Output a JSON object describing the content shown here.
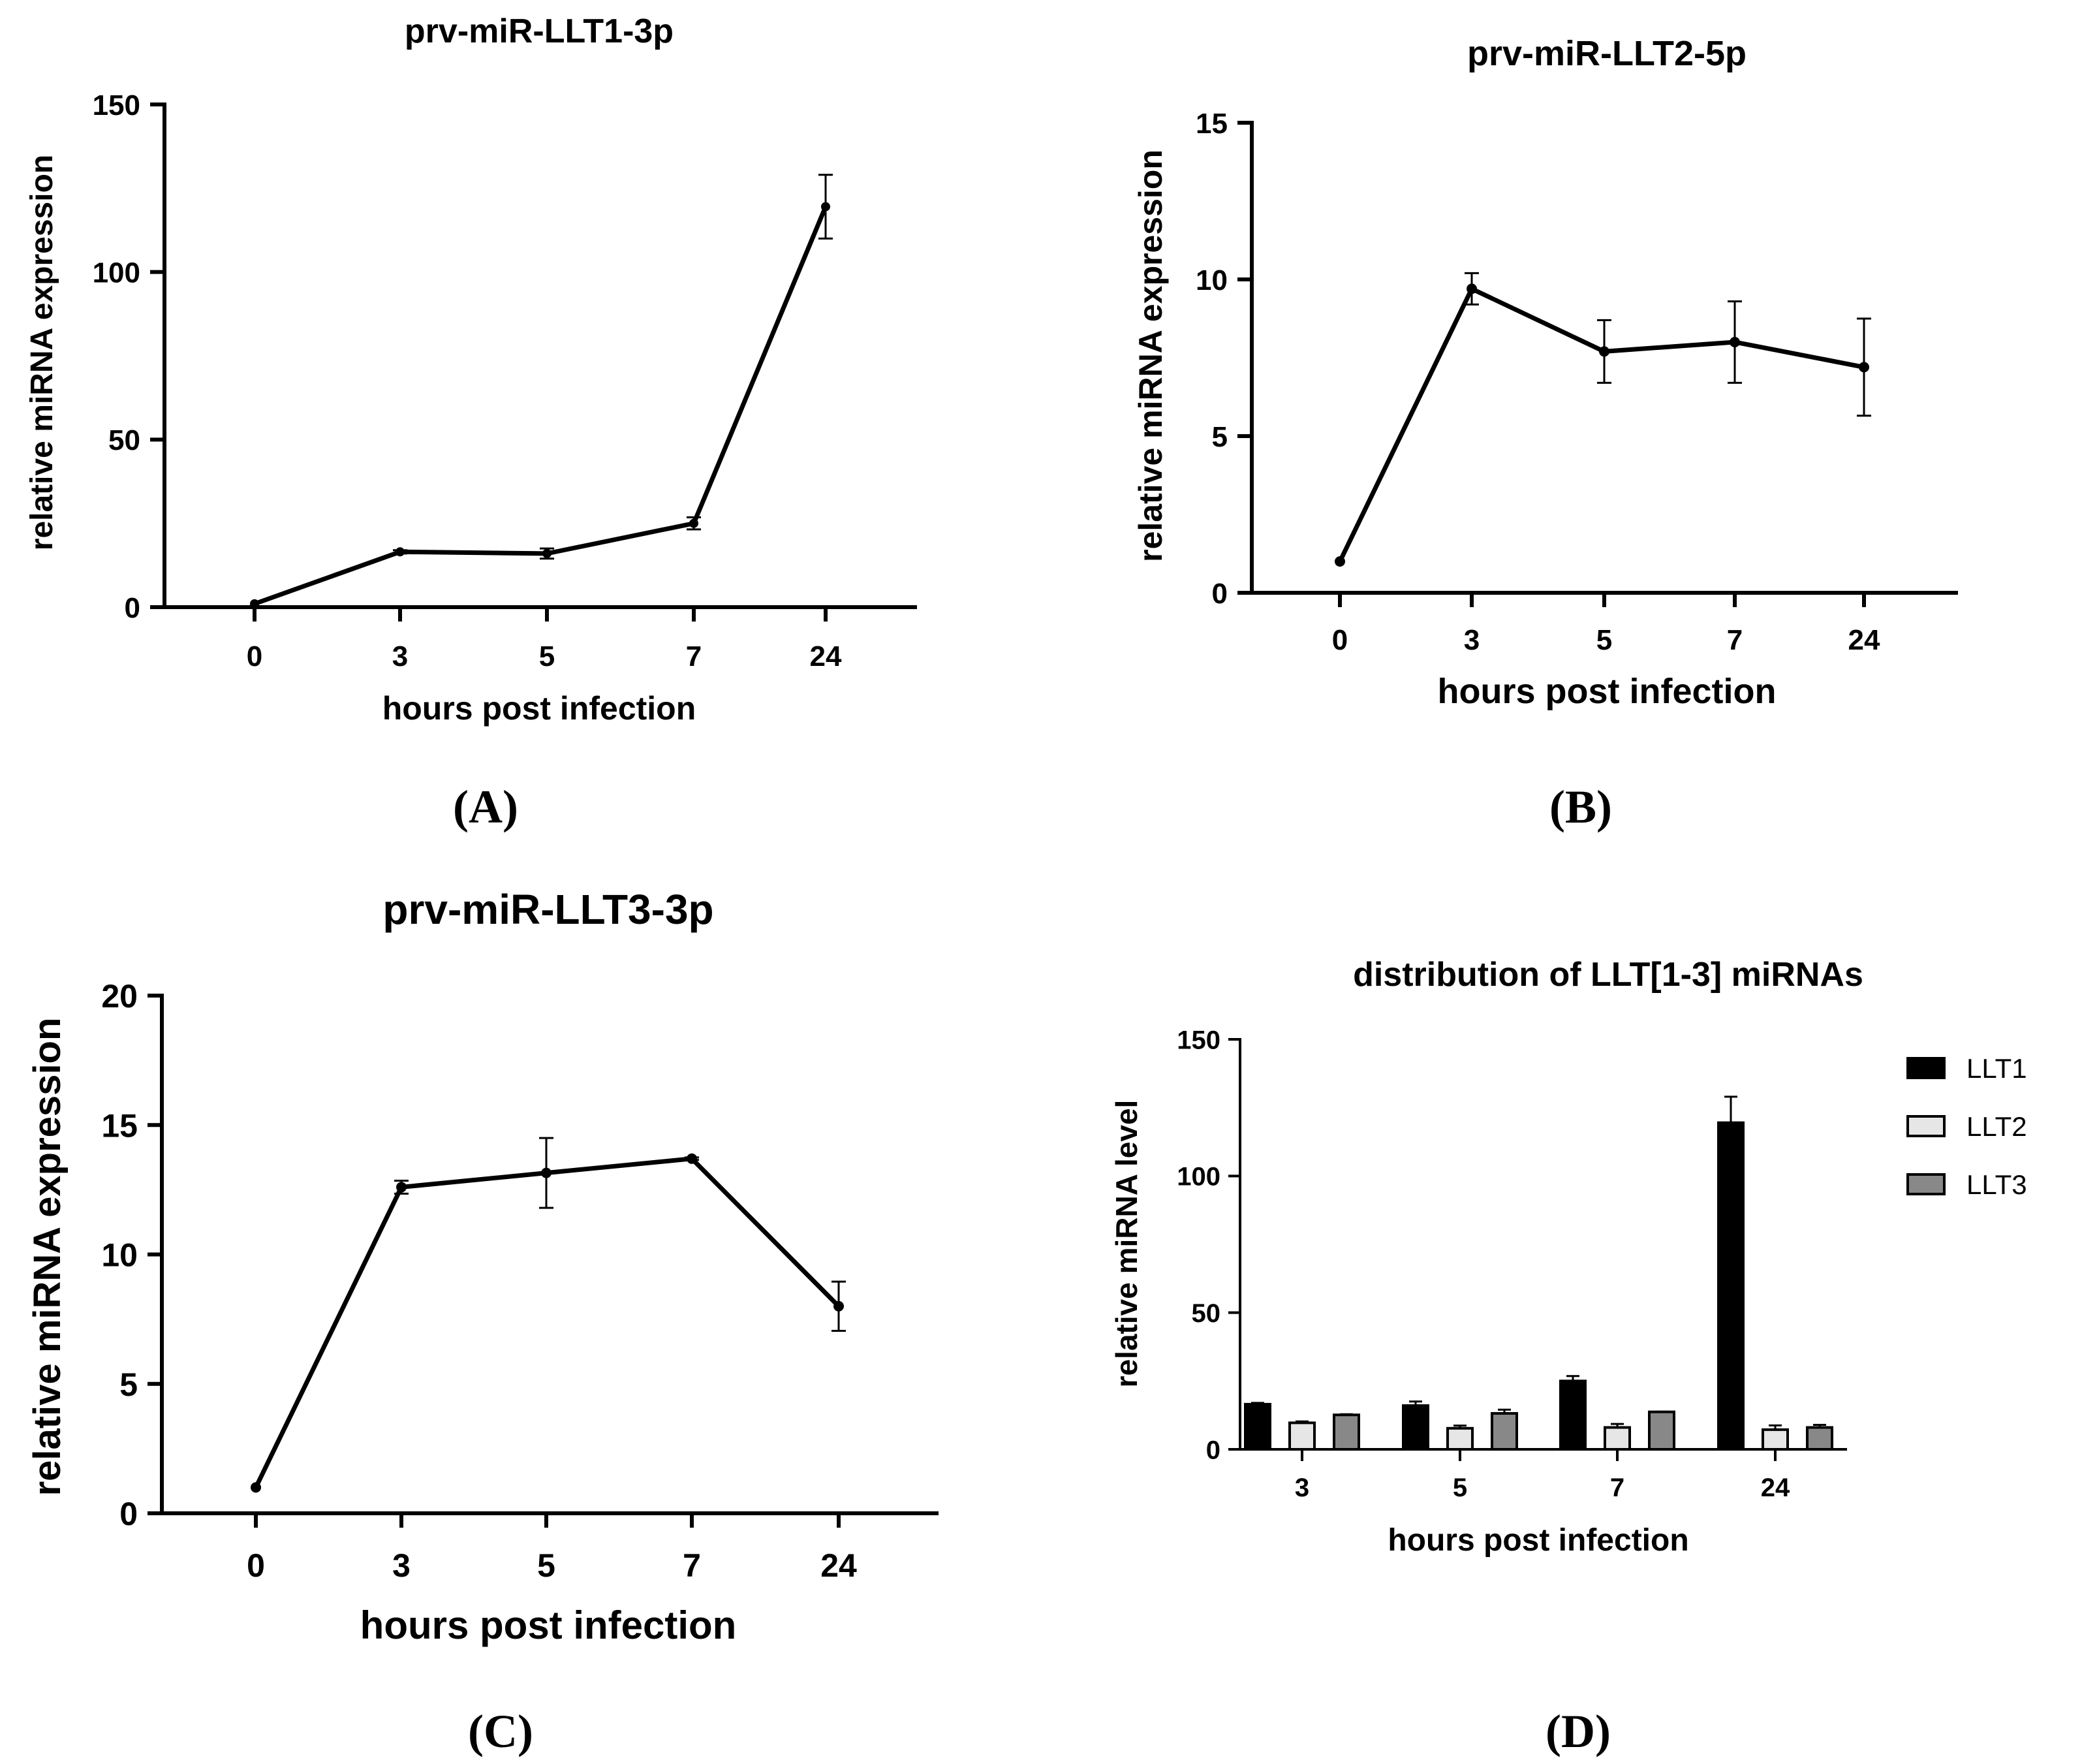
{
  "chart_data": [
    {
      "panel_label": "(A)",
      "type": "line",
      "title": "prv-miR-LLT1-3p",
      "xlabel": "hours post infection",
      "ylabel": "relative miRNA expression",
      "categories": [
        "0",
        "3",
        "5",
        "7",
        "24"
      ],
      "values": [
        1,
        16.5,
        16,
        25,
        119.5
      ],
      "errors": [
        0,
        0.5,
        1.5,
        1.8,
        9.5
      ],
      "ylim": [
        0,
        150
      ],
      "yticks": [
        "0",
        "50",
        "100",
        "150"
      ]
    },
    {
      "panel_label": "(B)",
      "type": "line",
      "title": "prv-miR-LLT2-5p",
      "xlabel": "hours post infection",
      "ylabel": "relative miRNA expression",
      "categories": [
        "0",
        "3",
        "5",
        "7",
        "24"
      ],
      "values": [
        1,
        9.7,
        7.7,
        8.0,
        7.2
      ],
      "errors": [
        0,
        0.5,
        1.0,
        1.3,
        1.55
      ],
      "ylim": [
        0,
        15
      ],
      "yticks": [
        "0",
        "5",
        "10",
        "15"
      ]
    },
    {
      "panel_label": "(C)",
      "type": "line",
      "title": "prv-miR-LLT3-3p",
      "xlabel": "hours post infection",
      "ylabel": "relative miRNA expression",
      "categories": [
        "0",
        "3",
        "5",
        "7",
        "24"
      ],
      "values": [
        1,
        12.6,
        13.15,
        13.7,
        8.0
      ],
      "errors": [
        0,
        0.25,
        1.35,
        0.05,
        0.95
      ],
      "ylim": [
        0,
        20
      ],
      "yticks": [
        "0",
        "5",
        "10",
        "15",
        "20"
      ]
    },
    {
      "panel_label": "(D)",
      "type": "bar",
      "title": "distribution of LLT[1-3] miRNAs",
      "xlabel": "hours post infection",
      "ylabel": "relative miRNA level",
      "categories": [
        "3",
        "5",
        "7",
        "24"
      ],
      "ylim": [
        0,
        150
      ],
      "yticks": [
        "0",
        "50",
        "100",
        "150"
      ],
      "series": [
        {
          "name": "LLT1",
          "color": "#000000",
          "values": [
            16.5,
            16,
            25,
            119.5
          ],
          "errors": [
            0.5,
            1.5,
            1.8,
            9.5
          ]
        },
        {
          "name": "LLT2",
          "color": "#e6e6e6",
          "values": [
            9.7,
            7.7,
            8.0,
            7.2
          ],
          "errors": [
            0.5,
            1.0,
            1.3,
            1.55
          ]
        },
        {
          "name": "LLT3",
          "color": "#888888",
          "values": [
            12.6,
            13.15,
            13.7,
            8.0
          ],
          "errors": [
            0.25,
            1.35,
            0.05,
            0.95
          ]
        }
      ]
    }
  ]
}
